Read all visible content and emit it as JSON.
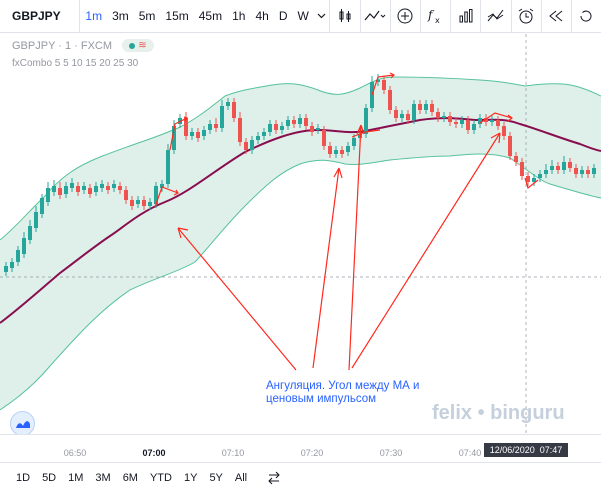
{
  "toolbar": {
    "symbol": "GBPJPY",
    "timeframes": [
      "1m",
      "3m",
      "5m",
      "15m",
      "45m",
      "1h",
      "4h",
      "D",
      "W"
    ],
    "active_timeframe": "1m",
    "icons": [
      "chevron-down-icon",
      "candles-icon",
      "line-style-icon",
      "add-icon",
      "indicators-icon",
      "financials-icon",
      "compare-icon",
      "alert-icon",
      "replay-icon",
      "rewind-icon"
    ]
  },
  "legend": {
    "title": "GBPJPY · 1 · FXCM",
    "indicator": "fxCombo 5 5 10 15 20 25 30"
  },
  "annotation": {
    "line1": "Ангуляция. Угол между МА и",
    "line2": "ценовым импульсом"
  },
  "watermark": "felix • binguru",
  "time_axis": {
    "labels": [
      "06:50",
      "07:00",
      "07:10",
      "07:20",
      "07:30",
      "07:40"
    ],
    "bold_label": "07:00",
    "cursor_date": "12/06/2020",
    "cursor_time": "07:47"
  },
  "bottom_bar": {
    "ranges": [
      "1D",
      "5D",
      "1M",
      "3M",
      "6M",
      "YTD",
      "1Y",
      "5Y",
      "All"
    ]
  },
  "colors": {
    "bull": "#26a69a",
    "bear": "#ef5350",
    "band_fill": "#dff0ea",
    "band_line": "#55c29a",
    "ma_line": "#880e4f",
    "arrows": "#ff2a1f",
    "accent": "#2962ff"
  }
}
